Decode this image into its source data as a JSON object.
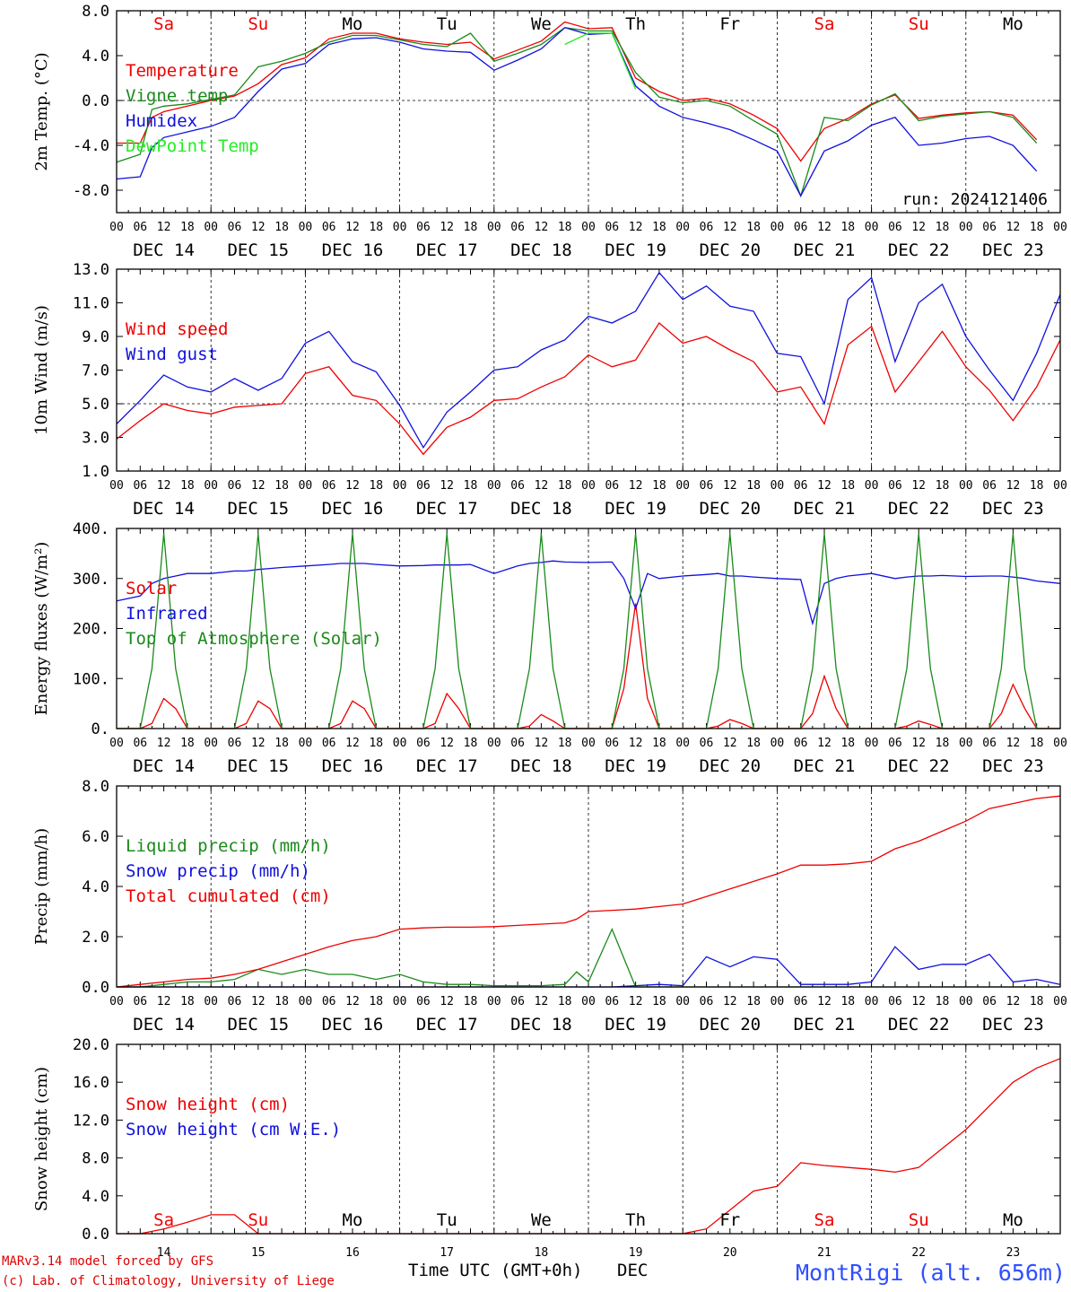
{
  "colors": {
    "red": "#ee0000",
    "green": "#1a8a1a",
    "blue": "#1010dd",
    "lightgreen": "#22ee22",
    "black": "#000000"
  },
  "days": [
    "DEC 14",
    "DEC 15",
    "DEC 16",
    "DEC 17",
    "DEC 18",
    "DEC 19",
    "DEC 20",
    "DEC 21",
    "DEC 22",
    "DEC 23"
  ],
  "hour_ticks": [
    "00",
    "06",
    "12",
    "18"
  ],
  "final_tick": "00",
  "weekdays_top": [
    {
      "label": "Sa",
      "weekend": true
    },
    {
      "label": "Su",
      "weekend": true
    },
    {
      "label": "Mo",
      "weekend": false
    },
    {
      "label": "Tu",
      "weekend": false
    },
    {
      "label": "We",
      "weekend": false
    },
    {
      "label": "Th",
      "weekend": false
    },
    {
      "label": "Fr",
      "weekend": false
    },
    {
      "label": "Sa",
      "weekend": true
    },
    {
      "label": "Su",
      "weekend": true
    },
    {
      "label": "Mo",
      "weekend": false
    }
  ],
  "bottom_day_numbers": [
    "14",
    "15",
    "16",
    "17",
    "18",
    "19",
    "20",
    "21",
    "22",
    "23"
  ],
  "x_axis_label": "Time UTC (GMT+0h)",
  "x_axis_month": "DEC",
  "credit_line1": "MARv3.14 model forced by GFS",
  "credit_line2": "(c) Lab. of Climatology, University of Liege",
  "station": "MontRigi (alt. 656m)",
  "chart_data": [
    {
      "type": "line",
      "ylabel": "2m Temp. (°C)",
      "ylim": [
        -10,
        8
      ],
      "yticks": [
        "8.0",
        "4.0",
        "0.0",
        "-4.0",
        "-8.0"
      ],
      "ytick_values": [
        8,
        4,
        0,
        -4,
        -8
      ],
      "reference_line": 0,
      "run_label": "run: 2024121406",
      "x_hours": [
        0,
        6,
        9,
        12,
        18,
        24,
        30,
        36,
        42,
        48,
        54,
        60,
        66,
        72,
        78,
        84,
        90,
        96,
        102,
        108,
        114,
        120,
        126,
        132,
        138,
        144,
        150,
        156,
        162,
        168,
        174,
        180,
        186,
        192,
        198,
        204,
        210,
        216,
        222,
        228,
        234
      ],
      "series": [
        {
          "name": "Temperature",
          "color": "red",
          "values": [
            -3.8,
            -3.8,
            -1.5,
            -1.0,
            -0.5,
            0.0,
            0.4,
            1.5,
            3.2,
            3.8,
            5.5,
            6.0,
            6.0,
            5.5,
            5.2,
            5.0,
            5.2,
            3.7,
            4.5,
            5.3,
            7.0,
            6.4,
            6.5,
            2.0,
            0.8,
            0.0,
            0.2,
            -0.3,
            -1.3,
            -2.5,
            -5.4,
            -2.5,
            -1.6,
            -0.3,
            0.5,
            -1.6,
            -1.3,
            -1.1,
            -1.0,
            -1.3,
            -3.5
          ]
        },
        {
          "name": "Vigne temp",
          "color": "green",
          "values": [
            -5.5,
            -4.8,
            -0.8,
            -0.5,
            -0.3,
            0.1,
            0.5,
            3.0,
            3.5,
            4.2,
            5.2,
            5.8,
            5.8,
            5.4,
            5.0,
            4.8,
            6.0,
            3.5,
            4.2,
            5.0,
            6.5,
            6.2,
            6.2,
            2.5,
            0.3,
            -0.2,
            0.0,
            -0.5,
            -1.8,
            -3.0,
            -8.5,
            -1.5,
            -1.8,
            -0.4,
            0.6,
            -1.8,
            -1.4,
            -1.2,
            -1.0,
            -1.5,
            -3.8
          ]
        },
        {
          "name": "Humidex",
          "color": "blue",
          "values": [
            -7.0,
            -6.8,
            -4.2,
            -3.3,
            -2.8,
            -2.3,
            -1.5,
            0.8,
            2.8,
            3.3,
            5.0,
            5.5,
            5.6,
            5.2,
            4.6,
            4.4,
            4.3,
            2.7,
            3.6,
            4.6,
            6.5,
            5.9,
            6.0,
            1.3,
            -0.5,
            -1.5,
            -2.0,
            -2.6,
            -3.5,
            -4.5,
            -8.5,
            -4.5,
            -3.6,
            -2.2,
            -1.5,
            -4.0,
            -3.8,
            -3.4,
            -3.2,
            -4.0,
            -6.3
          ]
        },
        {
          "name": "DewPoint Temp",
          "color": "lightgreen",
          "values": [
            null,
            null,
            null,
            null,
            null,
            null,
            null,
            null,
            null,
            null,
            null,
            null,
            null,
            null,
            null,
            null,
            null,
            null,
            null,
            null,
            5.0,
            6.0,
            6.0,
            1.0,
            null,
            null,
            null,
            null,
            null,
            null,
            null,
            null,
            null,
            null,
            null,
            null,
            null,
            null,
            null,
            null,
            null
          ]
        }
      ]
    },
    {
      "type": "line",
      "ylabel": "10m Wind (m/s)",
      "ylim": [
        1,
        13
      ],
      "yticks": [
        "13.0",
        "11.0",
        "9.0",
        "7.0",
        "5.0",
        "3.0",
        "1.0"
      ],
      "ytick_values": [
        13,
        11,
        9,
        7,
        5,
        3,
        1
      ],
      "reference_line": 5,
      "x_hours": [
        0,
        6,
        12,
        18,
        24,
        30,
        36,
        42,
        48,
        54,
        60,
        66,
        72,
        78,
        84,
        90,
        96,
        102,
        108,
        114,
        120,
        126,
        132,
        138,
        144,
        150,
        156,
        162,
        168,
        174,
        180,
        186,
        192,
        198,
        204,
        210,
        216,
        222,
        228,
        234,
        240
      ],
      "series": [
        {
          "name": "Wind speed",
          "color": "red",
          "values": [
            2.9,
            4.0,
            5.0,
            4.6,
            4.4,
            4.8,
            4.9,
            5.0,
            6.8,
            7.2,
            5.5,
            5.2,
            3.8,
            2.0,
            3.6,
            4.2,
            5.2,
            5.3,
            6.0,
            6.6,
            7.9,
            7.2,
            7.6,
            9.8,
            8.6,
            9.0,
            8.2,
            7.5,
            5.7,
            6.0,
            3.8,
            8.5,
            9.6,
            5.7,
            7.5,
            9.3,
            7.2,
            5.8,
            4.0,
            6.0,
            8.8
          ]
        },
        {
          "name": "Wind gust",
          "color": "blue",
          "values": [
            3.8,
            5.2,
            6.7,
            6.0,
            5.7,
            6.5,
            5.8,
            6.5,
            8.6,
            9.3,
            7.5,
            6.9,
            4.9,
            2.4,
            4.5,
            5.7,
            7.0,
            7.2,
            8.2,
            8.8,
            10.2,
            9.8,
            10.5,
            12.8,
            11.2,
            12.0,
            10.8,
            10.5,
            8.0,
            7.8,
            5.0,
            11.2,
            12.5,
            7.5,
            11.0,
            12.1,
            9.0,
            7.0,
            5.2,
            8.0,
            11.5
          ]
        }
      ]
    },
    {
      "type": "line",
      "ylabel": "Energy fluxes (W/m²)",
      "ylim": [
        0,
        400
      ],
      "yticks": [
        "400.",
        "300.",
        "200.",
        "100.",
        "0."
      ],
      "ytick_values": [
        400,
        300,
        200,
        100,
        0
      ],
      "x_hours": [
        0,
        6,
        9,
        12,
        15,
        18,
        24,
        30,
        33,
        36,
        39,
        42,
        48,
        54,
        57,
        60,
        63,
        66,
        72,
        78,
        81,
        84,
        87,
        90,
        96,
        102,
        105,
        108,
        111,
        114,
        120,
        126,
        129,
        132,
        135,
        138,
        144,
        150,
        153,
        156,
        159,
        162,
        168,
        174,
        177,
        180,
        183,
        186,
        192,
        198,
        201,
        204,
        207,
        210,
        216,
        222,
        225,
        228,
        231,
        234,
        240
      ],
      "series": [
        {
          "name": "Solar",
          "color": "red",
          "values": [
            0,
            0,
            10,
            60,
            40,
            0,
            0,
            0,
            10,
            55,
            40,
            0,
            0,
            0,
            10,
            55,
            40,
            0,
            0,
            0,
            10,
            70,
            40,
            0,
            0,
            0,
            5,
            28,
            15,
            0,
            0,
            0,
            80,
            250,
            60,
            0,
            0,
            0,
            5,
            18,
            10,
            0,
            0,
            0,
            30,
            105,
            40,
            0,
            0,
            0,
            5,
            15,
            8,
            0,
            0,
            0,
            30,
            88,
            40,
            0,
            0
          ]
        },
        {
          "name": "Infrared",
          "color": "blue",
          "values": [
            255,
            265,
            290,
            300,
            305,
            310,
            310,
            315,
            315,
            318,
            320,
            322,
            325,
            328,
            330,
            330,
            330,
            328,
            325,
            326,
            327,
            327,
            327,
            328,
            310,
            325,
            330,
            332,
            335,
            333,
            332,
            333,
            300,
            240,
            310,
            300,
            305,
            308,
            310,
            305,
            305,
            303,
            300,
            298,
            210,
            290,
            300,
            305,
            310,
            300,
            303,
            305,
            305,
            306,
            304,
            305,
            305,
            303,
            300,
            295,
            290
          ]
        },
        {
          "name": "Top of Atmosphere (Solar)",
          "color": "green",
          "values": [
            0,
            0,
            120,
            390,
            120,
            0,
            0,
            0,
            120,
            390,
            120,
            0,
            0,
            0,
            120,
            390,
            120,
            0,
            0,
            0,
            120,
            390,
            120,
            0,
            0,
            0,
            120,
            390,
            120,
            0,
            0,
            0,
            120,
            390,
            120,
            0,
            0,
            0,
            120,
            390,
            120,
            0,
            0,
            0,
            120,
            390,
            120,
            0,
            0,
            0,
            120,
            390,
            120,
            0,
            0,
            0,
            120,
            390,
            120,
            0,
            0
          ]
        }
      ]
    },
    {
      "type": "line",
      "ylabel": "Precip (mm/h)",
      "ylim": [
        0,
        8
      ],
      "yticks": [
        "8.0",
        "6.0",
        "4.0",
        "2.0",
        "0.0"
      ],
      "ytick_values": [
        8,
        6,
        4,
        2,
        0
      ],
      "x_hours": [
        0,
        6,
        12,
        18,
        24,
        30,
        36,
        42,
        48,
        54,
        60,
        66,
        72,
        78,
        84,
        90,
        96,
        102,
        108,
        114,
        117,
        120,
        126,
        132,
        138,
        144,
        150,
        156,
        162,
        168,
        174,
        180,
        186,
        192,
        198,
        204,
        210,
        216,
        222,
        228,
        234,
        240
      ],
      "series": [
        {
          "name": "Liquid precip (mm/h)",
          "color": "green",
          "values": [
            0,
            0,
            0.1,
            0.2,
            0.2,
            0.3,
            0.7,
            0.5,
            0.7,
            0.5,
            0.5,
            0.3,
            0.5,
            0.2,
            0.1,
            0.1,
            0.05,
            0.05,
            0.05,
            0.1,
            0.6,
            0.2,
            2.3,
            0,
            0,
            0,
            0,
            0,
            0,
            0,
            0,
            0,
            0,
            0,
            0,
            0,
            0,
            0,
            0,
            0,
            0,
            0
          ]
        },
        {
          "name": "Snow precip (mm/h)",
          "color": "blue",
          "values": [
            0,
            0,
            0,
            0,
            0,
            0,
            0,
            0,
            0,
            0,
            0,
            0,
            0,
            0,
            0,
            0,
            0,
            0,
            0,
            0,
            0,
            0,
            0,
            0.05,
            0.1,
            0.05,
            1.2,
            0.8,
            1.2,
            1.1,
            0.1,
            0.1,
            0.1,
            0.2,
            1.6,
            0.7,
            0.9,
            0.9,
            1.3,
            0.2,
            0.3,
            0.1
          ]
        },
        {
          "name": "Total cumulated (cm)",
          "color": "red",
          "values": [
            0,
            0.1,
            0.2,
            0.3,
            0.35,
            0.5,
            0.7,
            1.0,
            1.3,
            1.6,
            1.85,
            2.0,
            2.3,
            2.35,
            2.38,
            2.38,
            2.4,
            2.45,
            2.5,
            2.55,
            2.7,
            3.0,
            3.05,
            3.1,
            3.2,
            3.3,
            3.6,
            3.9,
            4.2,
            4.5,
            4.85,
            4.85,
            4.9,
            5.0,
            5.5,
            5.8,
            6.2,
            6.6,
            7.1,
            7.3,
            7.5,
            7.6
          ]
        }
      ]
    },
    {
      "type": "line",
      "ylabel": "Snow height (cm)",
      "ylim": [
        0,
        20
      ],
      "yticks": [
        "20.0",
        "16.0",
        "12.0",
        "8.0",
        "4.0",
        "0.0"
      ],
      "ytick_values": [
        20,
        16,
        12,
        8,
        4,
        0
      ],
      "x_hours": [
        0,
        6,
        12,
        18,
        24,
        30,
        36,
        42,
        48,
        54,
        60,
        66,
        72,
        78,
        84,
        90,
        96,
        102,
        108,
        114,
        120,
        126,
        132,
        138,
        144,
        150,
        156,
        162,
        168,
        174,
        180,
        186,
        192,
        198,
        204,
        210,
        216,
        222,
        228,
        234,
        240
      ],
      "series": [
        {
          "name": "Snow height (cm)",
          "color": "red",
          "values": [
            0,
            0,
            0.5,
            1.2,
            2.0,
            2.0,
            0,
            0,
            0,
            0,
            0,
            0,
            0,
            0,
            0,
            0,
            0,
            0,
            0,
            0,
            0,
            0,
            0,
            0,
            0,
            0.5,
            2.5,
            4.5,
            5.0,
            7.5,
            7.2,
            7.0,
            6.8,
            6.5,
            7.0,
            9.0,
            11.0,
            13.5,
            16.0,
            17.5,
            18.5
          ]
        },
        {
          "name": "Snow height (cm W.E.)",
          "color": "blue",
          "values": []
        }
      ]
    }
  ]
}
